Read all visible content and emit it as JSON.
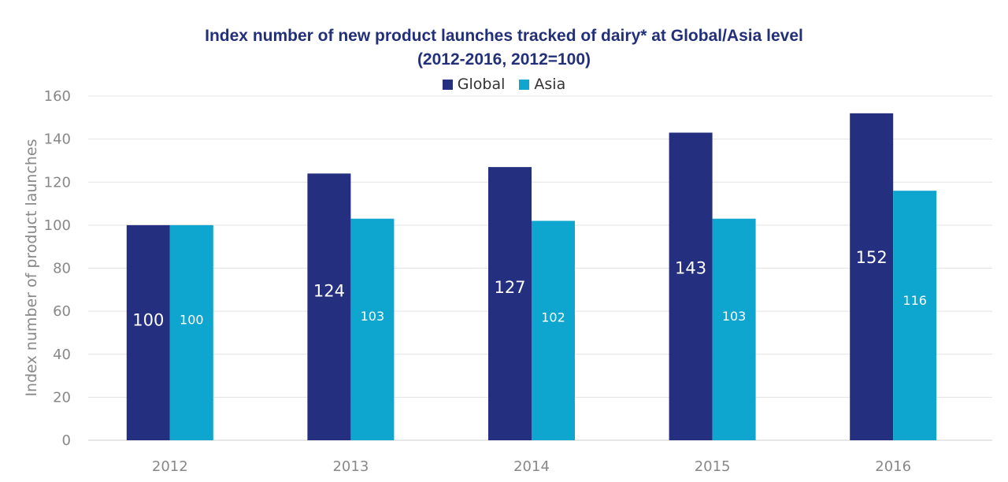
{
  "chart_data": {
    "type": "bar",
    "title": "Index number of new product launches tracked of dairy* at Global/Asia level",
    "subtitle": "(2012-2016, 2012=100)",
    "xlabel": "",
    "ylabel": "Index number of product launches",
    "categories": [
      "2012",
      "2013",
      "2014",
      "2015",
      "2016"
    ],
    "series": [
      {
        "name": "Global",
        "values": [
          100,
          124,
          127,
          143,
          152
        ],
        "color": "#24307f",
        "labels": [
          "100",
          "124",
          "127",
          "143",
          "152"
        ]
      },
      {
        "name": "Asia",
        "values": [
          100,
          103,
          102,
          103,
          116
        ],
        "color": "#0ea5cf",
        "labels": [
          "100",
          "103",
          "102",
          "103",
          "116"
        ]
      }
    ],
    "ylim": [
      0,
      160
    ],
    "yticks": [
      "0",
      "20",
      "40",
      "60",
      "80",
      "100",
      "120",
      "140",
      "160"
    ],
    "grid": true,
    "legend_position": "top-center"
  }
}
